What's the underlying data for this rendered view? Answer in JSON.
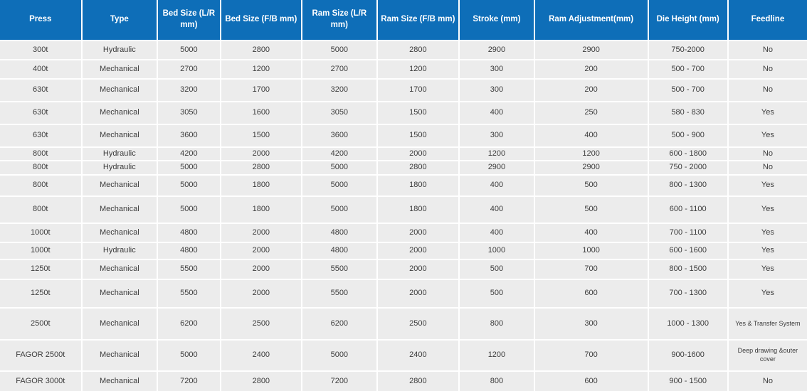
{
  "table": {
    "columns": [
      {
        "id": "press",
        "label": "Press"
      },
      {
        "id": "type",
        "label": "Type"
      },
      {
        "id": "bed-size-lr",
        "label": "Bed Size (L/R mm)"
      },
      {
        "id": "bed-size-fb",
        "label": "Bed Size (F/B mm)"
      },
      {
        "id": "ram-size-lr",
        "label": "Ram Size (L/R mm)"
      },
      {
        "id": "ram-size-fb",
        "label": "Ram Size (F/B mm)"
      },
      {
        "id": "stroke",
        "label": "Stroke (mm)"
      },
      {
        "id": "ram-adjustment",
        "label": "Ram Adjustment(mm)"
      },
      {
        "id": "die-height",
        "label": "Die Height (mm)"
      },
      {
        "id": "feedline",
        "label": "Feedline"
      }
    ],
    "rows": [
      [
        "300t",
        "Hydraulic",
        "5000",
        "2800",
        "5000",
        "2800",
        "2900",
        "2900",
        "750-2000",
        "No"
      ],
      [
        "400t",
        "Mechanical",
        "2700",
        "1200",
        "2700",
        "1200",
        "300",
        "200",
        "500 - 700",
        "No"
      ],
      [
        "630t",
        "Mechanical",
        "3200",
        "1700",
        "3200",
        "1700",
        "300",
        "200",
        "500 - 700",
        "No"
      ],
      [
        "630t",
        "Mechanical",
        "3050",
        "1600",
        "3050",
        "1500",
        "400",
        "250",
        "580 - 830",
        "Yes"
      ],
      [
        "630t",
        "Mechanical",
        "3600",
        "1500",
        "3600",
        "1500",
        "300",
        "400",
        "500 - 900",
        "Yes"
      ],
      [
        "800t",
        "Hydraulic",
        "4200",
        "2000",
        "4200",
        "2000",
        "1200",
        "1200",
        "600 - 1800",
        "No"
      ],
      [
        "800t",
        "Hydraulic",
        "5000",
        "2800",
        "5000",
        "2800",
        "2900",
        "2900",
        "750 - 2000",
        "No"
      ],
      [
        "800t",
        "Mechanical",
        "5000",
        "1800",
        "5000",
        "1800",
        "400",
        "500",
        "800 - 1300",
        "Yes"
      ],
      [
        "800t",
        "Mechanical",
        "5000",
        "1800",
        "5000",
        "1800",
        "400",
        "500",
        "600 - 1100",
        "Yes"
      ],
      [
        "1000t",
        "Mechanical",
        "4800",
        "2000",
        "4800",
        "2000",
        "400",
        "400",
        "700 - 1100",
        "Yes"
      ],
      [
        "1000t",
        "Hydraulic",
        "4800",
        "2000",
        "4800",
        "2000",
        "1000",
        "1000",
        "600 - 1600",
        "Yes"
      ],
      [
        "1250t",
        "Mechanical",
        "5500",
        "2000",
        "5500",
        "2000",
        "500",
        "700",
        "800 - 1500",
        "Yes"
      ],
      [
        "1250t",
        "Mechanical",
        "5500",
        "2000",
        "5500",
        "2000",
        "500",
        "600",
        "700 - 1300",
        "Yes"
      ],
      [
        "2500t",
        "Mechanical",
        "6200",
        "2500",
        "6200",
        "2500",
        "800",
        "300",
        "1000 - 1300",
        "Yes & Transfer System"
      ],
      [
        "FAGOR 2500t",
        "Mechanical",
        "5000",
        "2400",
        "5000",
        "2400",
        "1200",
        "700",
        "900-1600",
        "Deep drawing &outer cover"
      ],
      [
        "FAGOR 3000t",
        "Mechanical",
        "7200",
        "2800",
        "7200",
        "2800",
        "800",
        "600",
        "900 - 1500",
        "No"
      ]
    ]
  },
  "colors": {
    "header_bg": "#0e6eb8",
    "header_text": "#ffffff",
    "row_bg": "#ececec",
    "body_text": "#3c3c3c",
    "grid": "#ffffff"
  }
}
